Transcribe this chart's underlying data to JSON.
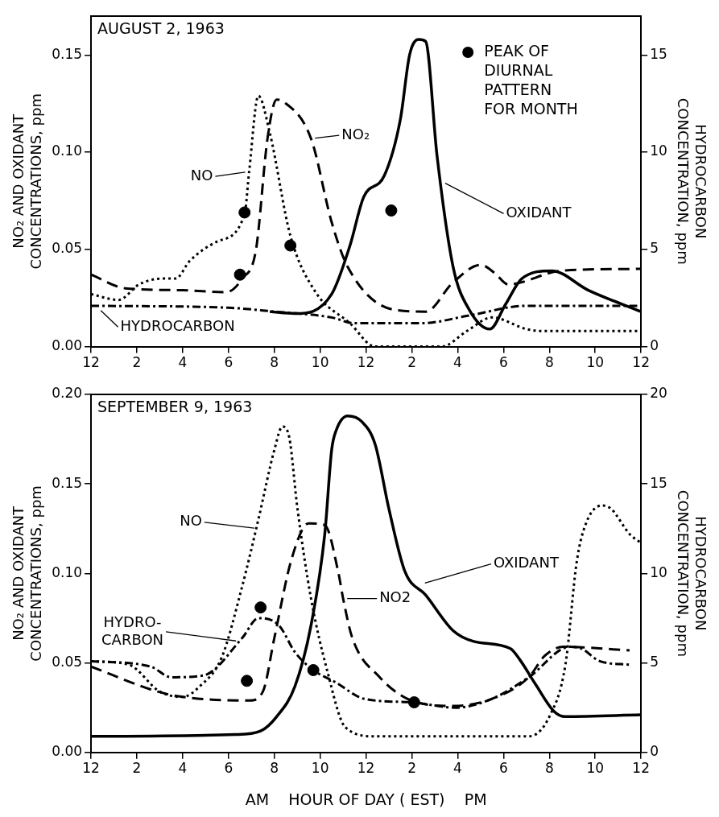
{
  "chart_data": [
    {
      "type": "line",
      "title": "AUGUST 2, 1963",
      "ylabel": "NO₂ AND OXIDANT\nCONCENTRATIONS, ppm",
      "y2label": "HYDROCARBON\nCONCENTRATION, ppm",
      "xlim": [
        "1963-08-02T00:00",
        "1963-08-03T00:00"
      ],
      "xticks": [
        {
          "value": "1963-08-02T00:00",
          "label": "12"
        },
        {
          "value": "1963-08-02T02:00",
          "label": "2"
        },
        {
          "value": "1963-08-02T04:00",
          "label": "4"
        },
        {
          "value": "1963-08-02T06:00",
          "label": "6"
        },
        {
          "value": "1963-08-02T08:00",
          "label": "8"
        },
        {
          "value": "1963-08-02T10:00",
          "label": "10"
        },
        {
          "value": "1963-08-02T12:00",
          "label": "12"
        },
        {
          "value": "1963-08-02T14:00",
          "label": "2"
        },
        {
          "value": "1963-08-02T16:00",
          "label": "4"
        },
        {
          "value": "1963-08-02T18:00",
          "label": "6"
        },
        {
          "value": "1963-08-02T20:00",
          "label": "8"
        },
        {
          "value": "1963-08-02T22:00",
          "label": "10"
        },
        {
          "value": "1963-08-03T00:00",
          "label": "12"
        }
      ],
      "ylim": [
        0,
        0.17
      ],
      "yticks": [
        {
          "value": 0,
          "label": "0.00"
        },
        {
          "value": 0.05,
          "label": "0.05"
        },
        {
          "value": 0.1,
          "label": "0.10"
        },
        {
          "value": 0.15,
          "label": "0.15"
        }
      ],
      "y2lim": [
        0,
        17
      ],
      "y2ticks": [
        0,
        5,
        10,
        15
      ],
      "grid": false,
      "legend": "top right",
      "series": [
        {
          "type": "line",
          "color": "#000000",
          "line_style": "dotted",
          "x": [
            "1963-08-02T00:00",
            "1963-08-02T01:12",
            "1963-08-02T02:06",
            "1963-08-02T03:06",
            "1963-08-02T03:42",
            "1963-08-02T04:18",
            "1963-08-02T05:30",
            "1963-08-02T06:42",
            "1963-08-02T06:54",
            "1963-08-02T07:18",
            "1963-08-02T07:48",
            "1963-08-02T08:42",
            "1963-08-02T09:48",
            "1963-08-02T11:18",
            "1963-08-02T12:24",
            "1963-08-02T15:18",
            "1963-08-02T16:24",
            "1963-08-02T17:30",
            "1963-08-02T19:00",
            "1963-08-02T19:42",
            "1963-08-03T00:00"
          ],
          "values": [
            0.027,
            0.024,
            0.032,
            0.035,
            0.035,
            0.044,
            0.054,
            0.068,
            0.09,
            0.129,
            0.11,
            0.057,
            0.028,
            0.012,
            0,
            0,
            0.008,
            0.015,
            0.009,
            0.008,
            0.008
          ]
        },
        {
          "type": "line",
          "color": "#000000",
          "line_style": "dashed",
          "x": [
            "1963-08-02T00:00",
            "1963-08-02T01:30",
            "1963-08-02T04:00",
            "1963-08-02T05:54",
            "1963-08-02T06:36",
            "1963-08-02T07:12",
            "1963-08-02T07:42",
            "1963-08-02T08:06",
            "1963-08-02T08:24",
            "1963-08-02T09:36",
            "1963-08-02T10:30",
            "1963-08-02T11:12",
            "1963-08-02T13:12",
            "1963-08-02T14:36",
            "1963-08-02T15:48",
            "1963-08-02T17:00",
            "1963-08-02T17:36",
            "1963-08-02T18:12",
            "1963-08-02T20:30",
            "1963-08-03T00:00"
          ],
          "values": [
            0.037,
            0.03,
            0.029,
            0.028,
            0.035,
            0.05,
            0.107,
            0.127,
            0.126,
            0.107,
            0.064,
            0.041,
            0.019,
            0.018,
            0.033,
            0.042,
            0.038,
            0.032,
            0.039,
            0.04
          ]
        },
        {
          "type": "line",
          "color": "#000000",
          "line_style": "solid",
          "x": [
            "1963-08-02T07:48",
            "1963-08-02T08:54",
            "1963-08-02T10:30",
            "1963-08-02T11:18",
            "1963-08-02T11:54",
            "1963-08-02T12:48",
            "1963-08-02T13:30",
            "1963-08-02T13:54",
            "1963-08-02T14:18",
            "1963-08-02T14:36",
            "1963-08-02T15:06",
            "1963-08-02T15:48",
            "1963-08-02T16:30",
            "1963-08-02T17:24",
            "1963-08-02T18:06",
            "1963-08-02T18:48",
            "1963-08-02T20:06",
            "1963-08-02T21:42",
            "1963-08-03T00:00"
          ],
          "values": [
            0.018,
            0.017,
            0.027,
            0.052,
            0.077,
            0.088,
            0.117,
            0.15,
            0.158,
            0.157,
            0.098,
            0.041,
            0.019,
            0.009,
            0.022,
            0.035,
            0.039,
            0.029,
            0.018
          ]
        },
        {
          "type": "line",
          "color": "#000000",
          "line_style": "dashdot",
          "axis": "y2",
          "x": [
            "1963-08-02T00:00",
            "1963-08-02T06:00",
            "1963-08-02T08:00",
            "1963-08-02T10:30",
            "1963-08-02T11:30",
            "1963-08-02T14:24",
            "1963-08-02T16:30",
            "1963-08-02T19:00",
            "1963-08-03T00:00"
          ],
          "values": [
            2.1,
            2.0,
            1.8,
            1.5,
            1.2,
            1.2,
            1.6,
            2.1,
            2.1
          ]
        },
        {
          "type": "scatter",
          "name": "PEAK OF\nDIURNAL\nPATTERN\nFOR MONTH",
          "color": "#000000",
          "marker": "circle",
          "x": [
            "1963-08-02T06:30",
            "1963-08-02T06:42",
            "1963-08-02T08:42",
            "1963-08-02T13:06"
          ],
          "values": [
            0.037,
            0.069,
            0.052,
            0.07
          ]
        }
      ],
      "annotations": [
        {
          "text": "NO",
          "x": "1963-08-02T06:54",
          "y": 0.09
        },
        {
          "text": "NO₂",
          "x": "1963-08-02T09:36",
          "y": 0.107
        },
        {
          "text": "HYDROCARBON",
          "x": "1963-08-02T00:18",
          "y": 0.02
        },
        {
          "text": "OXIDANT",
          "x": "1963-08-02T15:18",
          "y": 0.085
        }
      ]
    },
    {
      "type": "line",
      "title": "SEPTEMBER 9, 1963",
      "xlabel": "AM    HOUR OF DAY ( EST)    PM",
      "ylabel": "NO₂ AND OXIDANT\nCONCENTRATIONS, ppm",
      "y2label": "HYDROCARBON\nCONCENTRATION, ppm",
      "xlim": [
        "1963-09-09T00:00",
        "1963-09-10T00:00"
      ],
      "xticks": [
        {
          "value": "1963-09-09T00:00",
          "label": "12"
        },
        {
          "value": "1963-09-09T02:00",
          "label": "2"
        },
        {
          "value": "1963-09-09T04:00",
          "label": "4"
        },
        {
          "value": "1963-09-09T06:00",
          "label": "6"
        },
        {
          "value": "1963-09-09T08:00",
          "label": "8"
        },
        {
          "value": "1963-09-09T10:00",
          "label": "10"
        },
        {
          "value": "1963-09-09T12:00",
          "label": "12"
        },
        {
          "value": "1963-09-09T14:00",
          "label": "2"
        },
        {
          "value": "1963-09-09T16:00",
          "label": "4"
        },
        {
          "value": "1963-09-09T18:00",
          "label": "6"
        },
        {
          "value": "1963-09-09T20:00",
          "label": "8"
        },
        {
          "value": "1963-09-09T22:00",
          "label": "10"
        },
        {
          "value": "1963-09-10T00:00",
          "label": "12"
        }
      ],
      "ylim": [
        0,
        0.2
      ],
      "yticks": [
        {
          "value": 0,
          "label": "0.00"
        },
        {
          "value": 0.05,
          "label": "0.05"
        },
        {
          "value": 0.1,
          "label": "0.10"
        },
        {
          "value": 0.15,
          "label": "0.15"
        },
        {
          "value": 0.2,
          "label": "0.20"
        }
      ],
      "y2lim": [
        0,
        20
      ],
      "y2ticks": [
        0,
        5,
        10,
        15,
        20
      ],
      "grid": false,
      "series": [
        {
          "type": "line",
          "color": "#000000",
          "line_style": "dotted",
          "x": [
            "1963-09-09T00:00",
            "1963-09-09T01:39",
            "1963-09-09T03:00",
            "1963-09-09T04:00",
            "1963-09-09T04:45",
            "1963-09-09T05:42",
            "1963-09-09T06:36",
            "1963-09-09T07:18",
            "1963-09-09T08:00",
            "1963-09-09T08:21",
            "1963-09-09T08:39",
            "1963-09-09T09:00",
            "1963-09-09T09:36",
            "1963-09-09T10:18",
            "1963-09-09T11:06",
            "1963-09-09T12:24",
            "1963-09-09T19:06",
            "1963-09-09T20:00",
            "1963-09-09T20:42",
            "1963-09-09T21:12",
            "1963-09-09T21:36",
            "1963-09-09T22:18",
            "1963-09-09T22:42",
            "1963-09-09T23:30",
            "1963-09-10T00:00"
          ],
          "values": [
            0.051,
            0.049,
            0.034,
            0.031,
            0.037,
            0.053,
            0.093,
            0.13,
            0.169,
            0.182,
            0.176,
            0.137,
            0.086,
            0.046,
            0.014,
            0.009,
            0.009,
            0.02,
            0.049,
            0.107,
            0.128,
            0.138,
            0.136,
            0.122,
            0.117
          ]
        },
        {
          "type": "line",
          "color": "#000000",
          "line_style": "dashed",
          "x": [
            "1963-09-09T00:00",
            "1963-09-09T02:54",
            "1963-09-09T04:00",
            "1963-09-09T06:54",
            "1963-09-09T07:30",
            "1963-09-09T08:00",
            "1963-09-09T08:45",
            "1963-09-09T09:30",
            "1963-09-09T10:12",
            "1963-09-09T10:48",
            "1963-09-09T11:00",
            "1963-09-09T11:24",
            "1963-09-09T12:36",
            "1963-09-09T13:48",
            "1963-09-09T15:48",
            "1963-09-09T17:30",
            "1963-09-09T19:06",
            "1963-09-09T19:48",
            "1963-09-09T20:36",
            "1963-09-09T23:30"
          ],
          "values": [
            0.048,
            0.034,
            0.031,
            0.029,
            0.034,
            0.064,
            0.108,
            0.128,
            0.127,
            0.1,
            0.086,
            0.064,
            0.042,
            0.03,
            0.026,
            0.03,
            0.042,
            0.054,
            0.059,
            0.057
          ]
        },
        {
          "type": "line",
          "color": "#000000",
          "line_style": "solid",
          "x": [
            "1963-09-09T00:00",
            "1963-09-09T06:18",
            "1963-09-09T07:24",
            "1963-09-09T08:06",
            "1963-09-09T08:54",
            "1963-09-09T09:36",
            "1963-09-09T10:12",
            "1963-09-09T10:30",
            "1963-09-09T10:42",
            "1963-09-09T11:12",
            "1963-09-09T11:48",
            "1963-09-09T12:24",
            "1963-09-09T13:00",
            "1963-09-09T13:42",
            "1963-09-09T14:36",
            "1963-09-09T15:48",
            "1963-09-09T16:42",
            "1963-09-09T18:18",
            "1963-09-09T18:42",
            "1963-09-09T19:24",
            "1963-09-09T20:12",
            "1963-09-09T20:42",
            "1963-09-10T00:00"
          ],
          "values": [
            0.009,
            0.01,
            0.012,
            0.02,
            0.037,
            0.071,
            0.122,
            0.169,
            0.18,
            0.188,
            0.185,
            0.172,
            0.136,
            0.101,
            0.088,
            0.068,
            0.062,
            0.058,
            0.052,
            0.038,
            0.023,
            0.02,
            0.021
          ]
        },
        {
          "type": "line",
          "color": "#000000",
          "line_style": "dashdot",
          "axis": "y2",
          "x": [
            "1963-09-09T00:00",
            "1963-09-09T02:36",
            "1963-09-09T03:30",
            "1963-09-09T04:54",
            "1963-09-09T06:36",
            "1963-09-09T07:18",
            "1963-09-09T08:12",
            "1963-09-09T08:54",
            "1963-09-09T09:42",
            "1963-09-09T10:42",
            "1963-09-09T11:54",
            "1963-09-09T14:00",
            "1963-09-09T15:54",
            "1963-09-09T17:30",
            "1963-09-09T19:06",
            "1963-09-09T20:54",
            "1963-09-09T21:24",
            "1963-09-09T22:12",
            "1963-09-09T23:30"
          ],
          "values": [
            5.1,
            4.8,
            4.2,
            4.3,
            6.4,
            7.5,
            7.1,
            5.6,
            4.6,
            3.9,
            3.0,
            2.8,
            2.5,
            3.0,
            4.2,
            5.9,
            5.8,
            5.1,
            4.9
          ]
        },
        {
          "type": "scatter",
          "color": "#000000",
          "marker": "circle",
          "x": [
            "1963-09-09T06:48",
            "1963-09-09T07:24",
            "1963-09-09T09:42",
            "1963-09-09T14:06"
          ],
          "values": [
            0.04,
            0.081,
            0.046,
            0.028
          ]
        }
      ],
      "annotations": [
        {
          "text": "NO",
          "x": "1963-09-09T07:18",
          "y": 0.125
        },
        {
          "text": "HYDRO-\nCARBON",
          "x": "1963-09-09T06:30",
          "y": 0.062
        },
        {
          "text": "NO2",
          "x": "1963-09-09T11:00",
          "y": 0.086
        },
        {
          "text": "OXIDANT",
          "x": "1963-09-09T14:24",
          "y": 0.094
        }
      ]
    }
  ]
}
